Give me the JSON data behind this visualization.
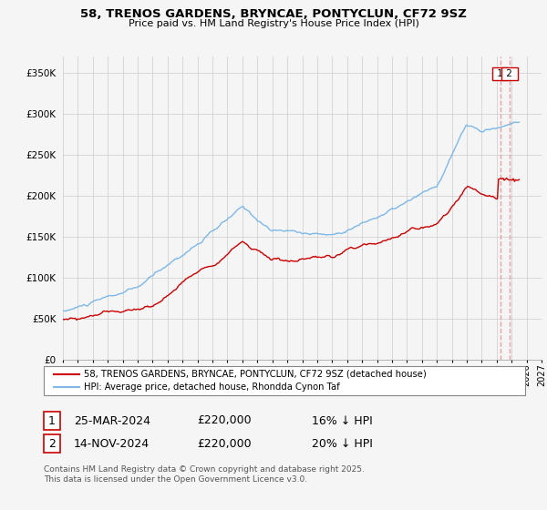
{
  "title_line1": "58, TRENOS GARDENS, BRYNCAE, PONTYCLUN, CF72 9SZ",
  "title_line2": "Price paid vs. HM Land Registry's House Price Index (HPI)",
  "legend_label_red": "58, TRENOS GARDENS, BRYNCAE, PONTYCLUN, CF72 9SZ (detached house)",
  "legend_label_blue": "HPI: Average price, detached house, Rhondda Cynon Taf",
  "transaction1_num": "1",
  "transaction1_date": "25-MAR-2024",
  "transaction1_price": "£220,000",
  "transaction1_hpi": "16% ↓ HPI",
  "transaction2_num": "2",
  "transaction2_date": "14-NOV-2024",
  "transaction2_price": "£220,000",
  "transaction2_hpi": "20% ↓ HPI",
  "footnote": "Contains HM Land Registry data © Crown copyright and database right 2025.\nThis data is licensed under the Open Government Licence v3.0.",
  "color_red": "#cc0000",
  "color_blue": "#7db8e8",
  "color_dashed": "#e8a0a0",
  "color_bg": "#f5f5f5",
  "color_grid": "#cccccc",
  "ylim_min": 0,
  "ylim_max": 370000,
  "year_start": 1995,
  "year_end": 2027,
  "marker1_year": 2024.23,
  "marker2_year": 2024.87,
  "title_fontsize": 9.5,
  "subtitle_fontsize": 8.0
}
